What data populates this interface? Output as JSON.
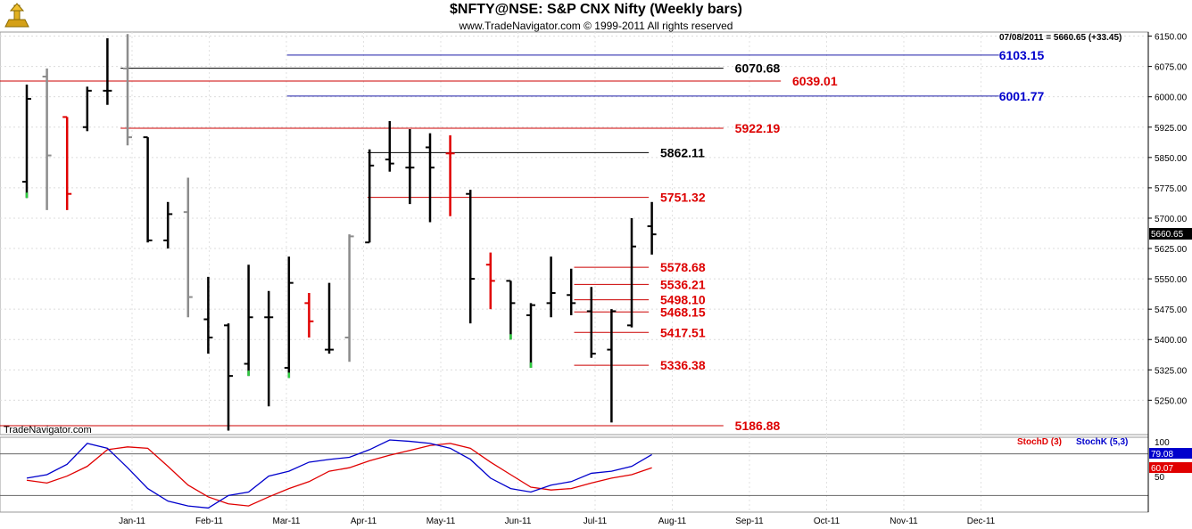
{
  "header": {
    "title": "$NFTY@NSE:  S&P CNX Nifty  (Weekly bars)",
    "subtitle": "www.TradeNavigator.com © 1999-2011 All rights reserved"
  },
  "watermark": "TradeNavigator.com",
  "quote_line": "07/08/2011 = 5660.65 (+33.45)",
  "last_price_tag": "5660.65",
  "stoch": {
    "d_label": "StochD (3)",
    "k_label": "StochK (5,3)",
    "k_value": "79.08",
    "d_value": "60.07",
    "axis_ticks": [
      "100",
      "50"
    ],
    "d_color": "#e00000",
    "k_color": "#0000cc"
  },
  "chart_data": {
    "type": "bar",
    "title": "$NFTY@NSE:  S&P CNX Nifty  (Weekly bars)",
    "y_ticks": [
      6150,
      6075,
      6000,
      5925,
      5850,
      5775,
      5700,
      5625,
      5550,
      5475,
      5400,
      5325,
      5250
    ],
    "ylim": [
      5165,
      6160
    ],
    "x_ticks": [
      "Jan-11",
      "Feb-11",
      "Mar-11",
      "Apr-11",
      "May-11",
      "Jun-11",
      "Jul-11",
      "Aug-11",
      "Sep-11",
      "Oct-11",
      "Nov-11",
      "Dec-11"
    ],
    "grid": true,
    "ohlc": [
      {
        "o": 5790,
        "h": 6030,
        "l": 5750,
        "c": 5995,
        "color": "black",
        "close_color": "#2ecc40"
      },
      {
        "o": 6050,
        "h": 6070,
        "l": 5720,
        "c": 5855,
        "color": "gray"
      },
      {
        "o": 5950,
        "h": 5950,
        "l": 5720,
        "c": 5760,
        "color": "red"
      },
      {
        "o": 5925,
        "h": 6025,
        "l": 5915,
        "c": 6015,
        "color": "black"
      },
      {
        "o": 6015,
        "h": 6145,
        "l": 5980,
        "c": 6015,
        "color": "black"
      },
      {
        "o": 6070,
        "h": 6155,
        "l": 5880,
        "c": 5900,
        "color": "gray"
      },
      {
        "o": 5900,
        "h": 5900,
        "l": 5640,
        "c": 5645,
        "color": "black"
      },
      {
        "o": 5645,
        "h": 5740,
        "l": 5625,
        "c": 5710,
        "color": "black"
      },
      {
        "o": 5715,
        "h": 5800,
        "l": 5455,
        "c": 5505,
        "color": "gray"
      },
      {
        "o": 5450,
        "h": 5555,
        "l": 5365,
        "c": 5405,
        "color": "black"
      },
      {
        "o": 5435,
        "h": 5440,
        "l": 5175,
        "c": 5310,
        "color": "black"
      },
      {
        "o": 5340,
        "h": 5585,
        "l": 5310,
        "c": 5455,
        "color": "black",
        "close_color": "#2ecc40"
      },
      {
        "o": 5455,
        "h": 5520,
        "l": 5235,
        "c": 5455,
        "color": "black"
      },
      {
        "o": 5330,
        "h": 5605,
        "l": 5305,
        "c": 5540,
        "color": "black",
        "close_color": "#2ecc40"
      },
      {
        "o": 5490,
        "h": 5515,
        "l": 5405,
        "c": 5445,
        "color": "red"
      },
      {
        "o": 5375,
        "h": 5540,
        "l": 5365,
        "c": 5375,
        "color": "black"
      },
      {
        "o": 5405,
        "h": 5660,
        "l": 5345,
        "c": 5655,
        "color": "gray"
      },
      {
        "o": 5640,
        "h": 5870,
        "l": 5640,
        "c": 5830,
        "color": "black"
      },
      {
        "o": 5845,
        "h": 5940,
        "l": 5815,
        "c": 5835,
        "color": "black"
      },
      {
        "o": 5825,
        "h": 5920,
        "l": 5735,
        "c": 5825,
        "color": "black"
      },
      {
        "o": 5875,
        "h": 5910,
        "l": 5690,
        "c": 5825,
        "color": "black"
      },
      {
        "o": 5860,
        "h": 5905,
        "l": 5705,
        "c": 5860,
        "color": "red"
      },
      {
        "o": 5760,
        "h": 5770,
        "l": 5440,
        "c": 5550,
        "color": "black"
      },
      {
        "o": 5585,
        "h": 5615,
        "l": 5475,
        "c": 5545,
        "color": "red"
      },
      {
        "o": 5545,
        "h": 5545,
        "l": 5400,
        "c": 5490,
        "color": "black",
        "close_color": "#2ecc40"
      },
      {
        "o": 5460,
        "h": 5490,
        "l": 5330,
        "c": 5485,
        "color": "black",
        "close_color": "#2ecc40"
      },
      {
        "o": 5490,
        "h": 5605,
        "l": 5455,
        "c": 5515,
        "color": "black"
      },
      {
        "o": 5510,
        "h": 5575,
        "l": 5460,
        "c": 5490,
        "color": "black"
      },
      {
        "o": 5470,
        "h": 5530,
        "l": 5355,
        "c": 5365,
        "color": "black"
      },
      {
        "o": 5375,
        "h": 5475,
        "l": 5195,
        "c": 5470,
        "color": "black"
      },
      {
        "o": 5435,
        "h": 5700,
        "l": 5430,
        "c": 5630,
        "color": "black"
      },
      {
        "o": 5680,
        "h": 5740,
        "l": 5610,
        "c": 5660,
        "color": "black"
      }
    ],
    "levels": [
      {
        "value": 6103.15,
        "label": "6103.15",
        "color": "#1a1aa6",
        "label_color": "#0000cc",
        "x1_frac": 0.25,
        "x2_frac": 0.87,
        "label_frac": 0.87
      },
      {
        "value": 6070.68,
        "label": "6070.68",
        "color": "#000000",
        "label_color": "#000000",
        "x1_frac": 0.105,
        "x2_frac": 0.63,
        "label_frac": 0.64
      },
      {
        "value": 6039.01,
        "label": "6039.01",
        "color": "#cc0000",
        "label_color": "#dd0000",
        "x1_frac": 0.0,
        "x2_frac": 0.68,
        "label_frac": 0.69
      },
      {
        "value": 6001.77,
        "label": "6001.77",
        "color": "#1a1aa6",
        "label_color": "#0000cc",
        "x1_frac": 0.25,
        "x2_frac": 0.87,
        "label_frac": 0.87
      },
      {
        "value": 5922.19,
        "label": "5922.19",
        "color": "#cc0000",
        "label_color": "#dd0000",
        "x1_frac": 0.105,
        "x2_frac": 0.63,
        "label_frac": 0.64
      },
      {
        "value": 5862.11,
        "label": "5862.11",
        "color": "#000000",
        "label_color": "#000000",
        "x1_frac": 0.32,
        "x2_frac": 0.565,
        "label_frac": 0.575
      },
      {
        "value": 5751.32,
        "label": "5751.32",
        "color": "#cc0000",
        "label_color": "#dd0000",
        "x1_frac": 0.32,
        "x2_frac": 0.565,
        "label_frac": 0.575
      },
      {
        "value": 5578.68,
        "label": "5578.68",
        "color": "#cc0000",
        "label_color": "#dd0000",
        "x1_frac": 0.5,
        "x2_frac": 0.565,
        "label_frac": 0.575
      },
      {
        "value": 5536.21,
        "label": "5536.21",
        "color": "#cc0000",
        "label_color": "#dd0000",
        "x1_frac": 0.5,
        "x2_frac": 0.565,
        "label_frac": 0.575
      },
      {
        "value": 5498.1,
        "label": "5498.10",
        "color": "#cc0000",
        "label_color": "#dd0000",
        "x1_frac": 0.5,
        "x2_frac": 0.565,
        "label_frac": 0.575
      },
      {
        "value": 5468.15,
        "label": "5468.15",
        "color": "#cc0000",
        "label_color": "#dd0000",
        "x1_frac": 0.5,
        "x2_frac": 0.565,
        "label_frac": 0.575
      },
      {
        "value": 5417.51,
        "label": "5417.51",
        "color": "#cc0000",
        "label_color": "#dd0000",
        "x1_frac": 0.5,
        "x2_frac": 0.565,
        "label_frac": 0.575
      },
      {
        "value": 5336.38,
        "label": "5336.38",
        "color": "#cc0000",
        "label_color": "#dd0000",
        "x1_frac": 0.5,
        "x2_frac": 0.565,
        "label_frac": 0.575
      },
      {
        "value": 5186.88,
        "label": "5186.88",
        "color": "#cc0000",
        "label_color": "#dd0000",
        "x1_frac": 0.0,
        "x2_frac": 0.63,
        "label_frac": 0.64
      }
    ],
    "stoch_d": [
      42,
      38,
      48,
      62,
      86,
      90,
      88,
      62,
      35,
      18,
      8,
      5,
      18,
      30,
      40,
      55,
      60,
      70,
      78,
      85,
      92,
      95,
      88,
      68,
      50,
      32,
      28,
      30,
      38,
      45,
      50,
      60
    ],
    "stoch_k": [
      45,
      50,
      65,
      95,
      88,
      60,
      30,
      12,
      5,
      2,
      20,
      25,
      48,
      55,
      68,
      72,
      75,
      86,
      100,
      98,
      95,
      88,
      72,
      45,
      30,
      25,
      35,
      40,
      52,
      55,
      62,
      79
    ]
  }
}
